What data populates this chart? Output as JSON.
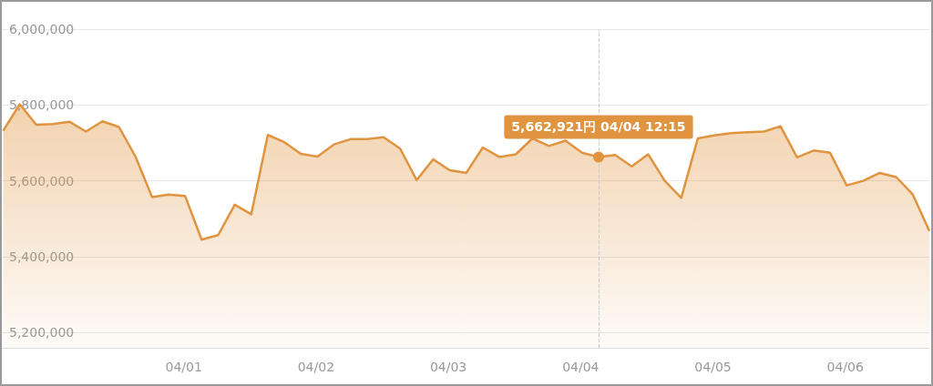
{
  "chart_data": {
    "type": "area",
    "x": [
      "--03-31T00:15",
      "--03-31T03:15",
      "--03-31T06:15",
      "--03-31T09:15",
      "--03-31T12:15",
      "--03-31T15:15",
      "--03-31T18:15",
      "--03-31T21:15",
      "--04-01T00:15",
      "--04-01T03:15",
      "--04-01T06:15",
      "--04-01T09:15",
      "--04-01T12:15",
      "--04-01T15:15",
      "--04-01T18:15",
      "--04-01T21:15",
      "--04-02T00:15",
      "--04-02T03:15",
      "--04-02T06:15",
      "--04-02T09:15",
      "--04-02T12:15",
      "--04-02T15:15",
      "--04-02T18:15",
      "--04-02T21:15",
      "--04-03T00:15",
      "--04-03T03:15",
      "--04-03T06:15",
      "--04-03T09:15",
      "--04-03T12:15",
      "--04-03T15:15",
      "--04-03T18:15",
      "--04-03T21:15",
      "--04-04T00:15",
      "--04-04T03:15",
      "--04-04T06:15",
      "--04-04T09:15",
      "--04-04T12:15",
      "--04-04T15:15",
      "--04-04T18:15",
      "--04-04T21:15",
      "--04-05T00:15",
      "--04-05T03:15",
      "--04-05T06:15",
      "--04-05T09:15",
      "--04-05T12:15",
      "--04-05T15:15",
      "--04-05T18:15",
      "--04-05T21:15",
      "--04-06T00:15",
      "--04-06T03:15",
      "--04-06T06:15",
      "--04-06T09:15",
      "--04-06T12:15",
      "--04-06T15:15",
      "--04-06T18:15",
      "--04-06T21:15",
      "--04-07T00:15"
    ],
    "series": [
      {
        "color": "#e0943f",
        "values": [
          5732000,
          5802000,
          5748000,
          5750000,
          5756000,
          5730000,
          5757000,
          5742000,
          5664000,
          5557000,
          5564000,
          5560000,
          5445000,
          5457000,
          5537000,
          5512000,
          5721000,
          5702000,
          5671000,
          5664000,
          5696000,
          5710000,
          5710000,
          5715000,
          5685000,
          5602000,
          5657000,
          5628000,
          5621000,
          5688000,
          5663000,
          5670000,
          5712000,
          5692000,
          5706000,
          5674000,
          5662921,
          5668000,
          5638000,
          5670000,
          5600000,
          5555000,
          5712000,
          5720000,
          5726000,
          5728000,
          5730000,
          5744000,
          5662000,
          5680000,
          5674000,
          5588000,
          5600000,
          5621000,
          5610000,
          5564000,
          5468000
        ]
      }
    ],
    "xlim": [
      "--03-31T00:00",
      "--04-07T00:15"
    ],
    "xticks": [
      {
        "value": "--04-01T09:00",
        "label": "04/01"
      },
      {
        "value": "--04-02T09:00",
        "label": "04/02"
      },
      {
        "value": "--04-03T09:00",
        "label": "04/03"
      },
      {
        "value": "--04-04T09:00",
        "label": "04/04"
      },
      {
        "value": "--04-05T09:00",
        "label": "04/05"
      },
      {
        "value": "--04-06T09:00",
        "label": "04/06"
      }
    ],
    "ylim": [
      5160000,
      6000000
    ],
    "yticks": [
      {
        "value": 5200000,
        "label": "5,200,000"
      },
      {
        "value": 5400000,
        "label": "5,400,000"
      },
      {
        "value": 5600000,
        "label": "5,600,000"
      },
      {
        "value": 5800000,
        "label": "5,800,000"
      },
      {
        "value": 6000000,
        "label": "6,000,000"
      }
    ],
    "annotations": [
      {
        "text": "5,662,921円 04/04 12:15",
        "x": "--04-04T12:15",
        "y": 5662921
      }
    ],
    "ref_lines": [
      {
        "axis": "x",
        "value": "--04-04T12:15",
        "color": "#cccccc",
        "line_style": "dashed"
      }
    ],
    "grid": "y",
    "marker": "none",
    "line_style": "solid"
  }
}
